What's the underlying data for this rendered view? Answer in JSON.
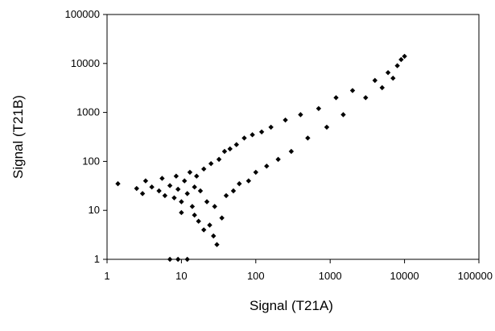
{
  "chart_data": {
    "type": "scatter",
    "xlabel": "Signal (T21A)",
    "ylabel": "Signal (T21B)",
    "x_scale": "log",
    "y_scale": "log",
    "xlim": [
      1,
      100000
    ],
    "ylim": [
      1,
      100000
    ],
    "x_ticks": [
      "1",
      "10",
      "100",
      "1000",
      "10000",
      "100000"
    ],
    "y_ticks": [
      "1",
      "10",
      "100",
      "1000",
      "10000",
      "100000"
    ],
    "grid": false,
    "legend": "none",
    "marker": "diamond",
    "marker_color": "#000000",
    "series": [
      {
        "points": [
          [
            1.4,
            35
          ],
          [
            2.5,
            28
          ],
          [
            3,
            22
          ],
          [
            3.3,
            40
          ],
          [
            4,
            30
          ],
          [
            5,
            25
          ],
          [
            5.5,
            45
          ],
          [
            6,
            20
          ],
          [
            7,
            32
          ],
          [
            8,
            18
          ],
          [
            8.5,
            50
          ],
          [
            9,
            27
          ],
          [
            10,
            15
          ],
          [
            10,
            9
          ],
          [
            11,
            40
          ],
          [
            12,
            22
          ],
          [
            13,
            60
          ],
          [
            14,
            12
          ],
          [
            15,
            8
          ],
          [
            15,
            30
          ],
          [
            16,
            50
          ],
          [
            17,
            6
          ],
          [
            18,
            25
          ],
          [
            20,
            4
          ],
          [
            20,
            70
          ],
          [
            22,
            15
          ],
          [
            24,
            5
          ],
          [
            25,
            90
          ],
          [
            27,
            3
          ],
          [
            28,
            12
          ],
          [
            30,
            2
          ],
          [
            32,
            110
          ],
          [
            35,
            7
          ],
          [
            38,
            160
          ],
          [
            40,
            20
          ],
          [
            45,
            180
          ],
          [
            50,
            25
          ],
          [
            55,
            220
          ],
          [
            60,
            35
          ],
          [
            70,
            300
          ],
          [
            80,
            40
          ],
          [
            90,
            350
          ],
          [
            100,
            60
          ],
          [
            120,
            400
          ],
          [
            140,
            80
          ],
          [
            160,
            500
          ],
          [
            200,
            110
          ],
          [
            250,
            700
          ],
          [
            300,
            160
          ],
          [
            400,
            900
          ],
          [
            500,
            300
          ],
          [
            700,
            1200
          ],
          [
            900,
            500
          ],
          [
            1200,
            2000
          ],
          [
            1500,
            900
          ],
          [
            2000,
            2800
          ],
          [
            3000,
            2000
          ],
          [
            4000,
            4500
          ],
          [
            5000,
            3200
          ],
          [
            6000,
            6500
          ],
          [
            7000,
            5000
          ],
          [
            8000,
            9000
          ],
          [
            9000,
            12000
          ],
          [
            10000,
            14000
          ],
          [
            9,
            1
          ],
          [
            12,
            1
          ],
          [
            7,
            0.9
          ]
        ]
      }
    ]
  }
}
